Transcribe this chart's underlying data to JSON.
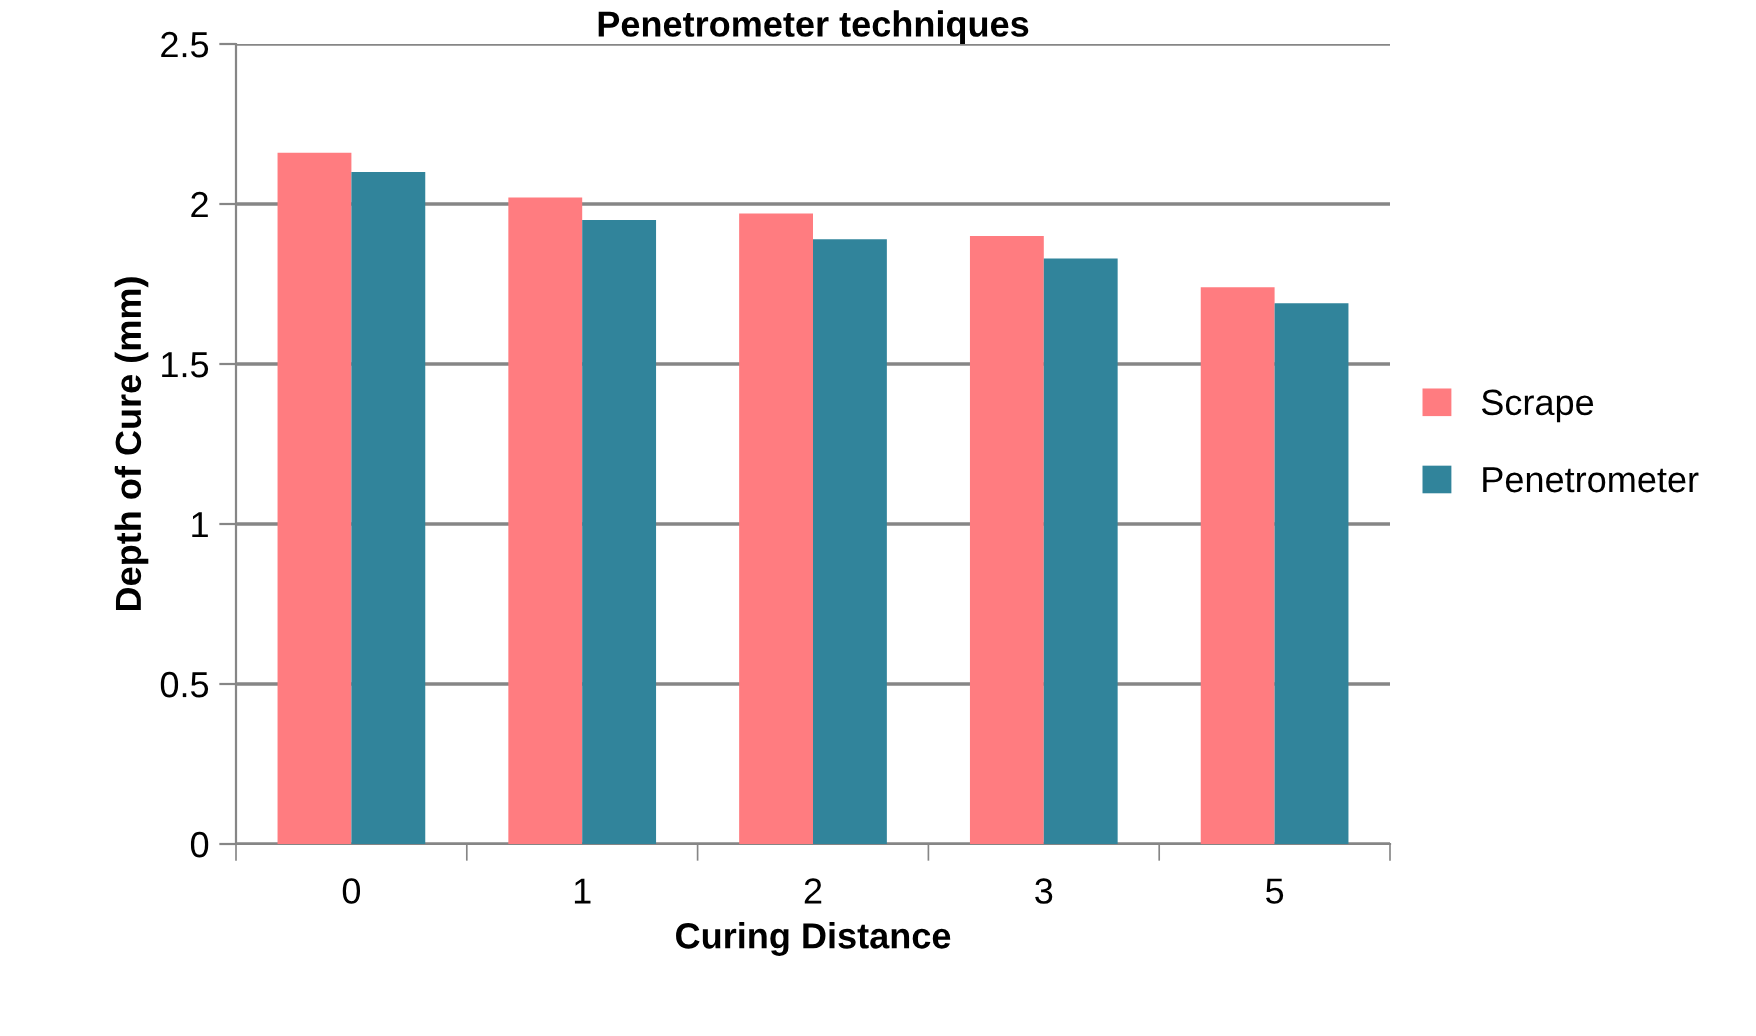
{
  "chart_data": {
    "type": "bar",
    "title": "Penetrometer techniques",
    "xlabel": "Curing Distance",
    "ylabel": "Depth of Cure (mm)",
    "categories": [
      "0",
      "1",
      "2",
      "3",
      "5"
    ],
    "series": [
      {
        "name": "Scrape",
        "color": "#ff7c80",
        "values": [
          2.16,
          2.02,
          1.97,
          1.9,
          1.74
        ]
      },
      {
        "name": "Penetrometer",
        "color": "#31849b",
        "values": [
          2.1,
          1.95,
          1.89,
          1.83,
          1.69
        ]
      }
    ],
    "ylim": [
      0,
      2.5
    ],
    "yticks": [
      0,
      0.5,
      1,
      1.5,
      2,
      2.5
    ],
    "grid": "y",
    "legend": "right"
  }
}
